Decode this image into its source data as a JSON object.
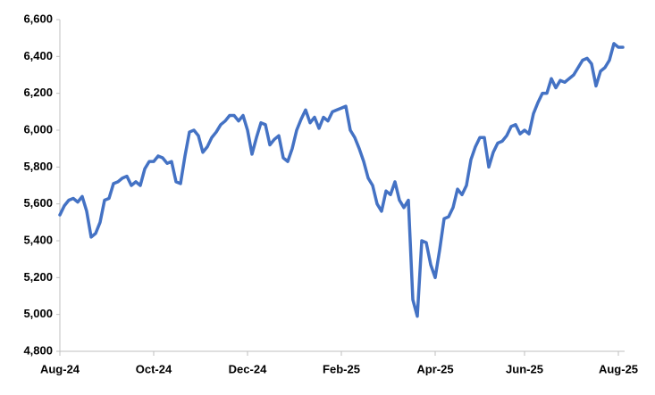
{
  "chart_data": {
    "type": "line",
    "categories": [
      "Aug-24",
      null,
      null,
      null,
      null,
      null,
      null,
      null,
      null,
      null,
      null,
      null,
      null,
      null,
      null,
      null,
      null,
      null,
      null,
      null,
      null,
      "Oct-24",
      null,
      null,
      null,
      null,
      null,
      null,
      null,
      null,
      null,
      null,
      null,
      null,
      null,
      null,
      null,
      null,
      null,
      null,
      null,
      null,
      "Dec-24",
      null,
      null,
      null,
      null,
      null,
      null,
      null,
      null,
      null,
      null,
      null,
      null,
      null,
      null,
      null,
      null,
      null,
      null,
      null,
      null,
      "Feb-25",
      null,
      null,
      null,
      null,
      null,
      null,
      null,
      null,
      null,
      null,
      null,
      null,
      null,
      null,
      null,
      null,
      null,
      null,
      null,
      null,
      "Apr-25",
      null,
      null,
      null,
      null,
      null,
      null,
      null,
      null,
      null,
      null,
      null,
      null,
      null,
      null,
      null,
      null,
      null,
      null,
      null,
      "Jun-25",
      null,
      null,
      null,
      null,
      null,
      null,
      null,
      null,
      null,
      null,
      null,
      null,
      null,
      null,
      null,
      null,
      null,
      null,
      null,
      null,
      "Aug-25",
      null
    ],
    "values": [
      5540,
      5590,
      5620,
      5630,
      5610,
      5640,
      5560,
      5420,
      5440,
      5500,
      5620,
      5630,
      5710,
      5720,
      5740,
      5750,
      5700,
      5720,
      5700,
      5790,
      5830,
      5830,
      5860,
      5850,
      5820,
      5830,
      5720,
      5710,
      5860,
      5990,
      6000,
      5970,
      5880,
      5910,
      5960,
      5990,
      6030,
      6050,
      6080,
      6080,
      6050,
      6080,
      6000,
      5870,
      5960,
      6040,
      6030,
      5920,
      5950,
      5970,
      5850,
      5830,
      5900,
      6000,
      6060,
      6110,
      6040,
      6070,
      6010,
      6070,
      6050,
      6100,
      6110,
      6120,
      6130,
      6000,
      5960,
      5900,
      5830,
      5740,
      5700,
      5600,
      5560,
      5670,
      5650,
      5720,
      5620,
      5580,
      5620,
      5080,
      4990,
      5400,
      5390,
      5270,
      5200,
      5350,
      5520,
      5530,
      5580,
      5680,
      5650,
      5700,
      5840,
      5910,
      5960,
      5960,
      5800,
      5880,
      5930,
      5940,
      5970,
      6020,
      6030,
      5980,
      6000,
      5980,
      6090,
      6150,
      6200,
      6200,
      6280,
      6230,
      6270,
      6260,
      6280,
      6300,
      6340,
      6380,
      6390,
      6360,
      6240,
      6320,
      6340,
      6380,
      6470,
      6450,
      6450
    ],
    "color": "#4472c4",
    "ylim": [
      4800,
      6600
    ],
    "yticks": [
      {
        "value": 4800,
        "label": "4,800"
      },
      {
        "value": 5000,
        "label": "5,000"
      },
      {
        "value": 5200,
        "label": "5,200"
      },
      {
        "value": 5400,
        "label": "5,400"
      },
      {
        "value": 5600,
        "label": "5,600"
      },
      {
        "value": 5800,
        "label": "5,800"
      },
      {
        "value": 6000,
        "label": "6,000"
      },
      {
        "value": 6200,
        "label": "6,200"
      },
      {
        "value": 6400,
        "label": "6,400"
      },
      {
        "value": 6600,
        "label": "6,600"
      }
    ],
    "grid": false
  }
}
